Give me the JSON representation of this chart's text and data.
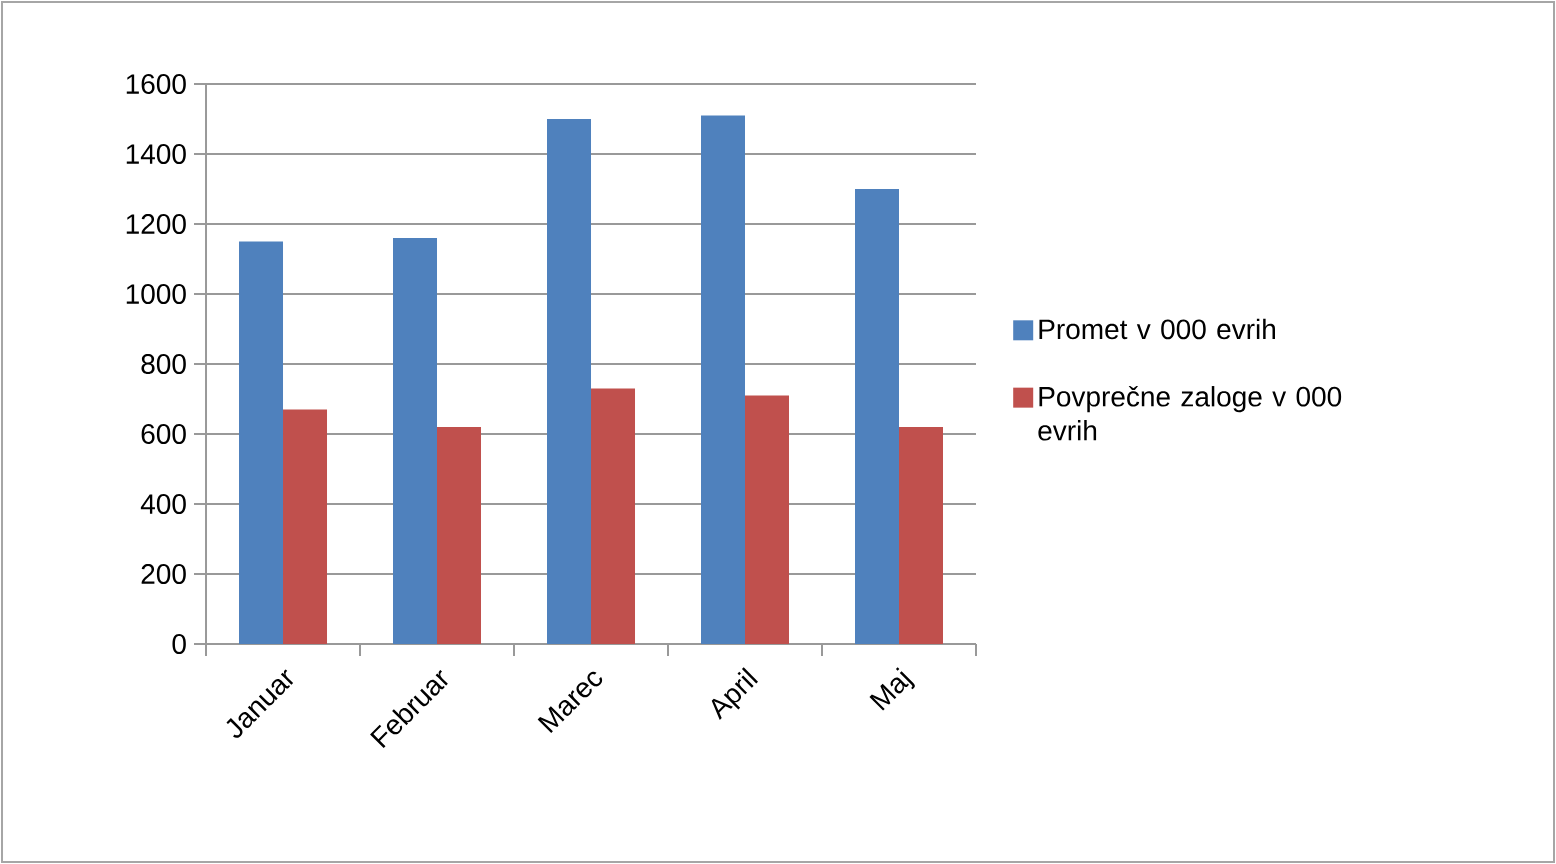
{
  "chart_data": {
    "type": "bar",
    "categories": [
      "Januar",
      "Februar",
      "Marec",
      "April",
      "Maj"
    ],
    "series": [
      {
        "name": "Promet v 000 evrih",
        "color": "#4f81bd",
        "values": [
          1150,
          1160,
          1500,
          1510,
          1300
        ]
      },
      {
        "name": "Povprečne zaloge v 000 evrih",
        "color": "#c0504d",
        "values": [
          670,
          620,
          730,
          710,
          620
        ]
      }
    ],
    "ylim": [
      0,
      1600
    ],
    "yticks": [
      0,
      200,
      400,
      600,
      800,
      1000,
      1200,
      1400,
      1600
    ],
    "grid": "y",
    "legend": "right"
  }
}
